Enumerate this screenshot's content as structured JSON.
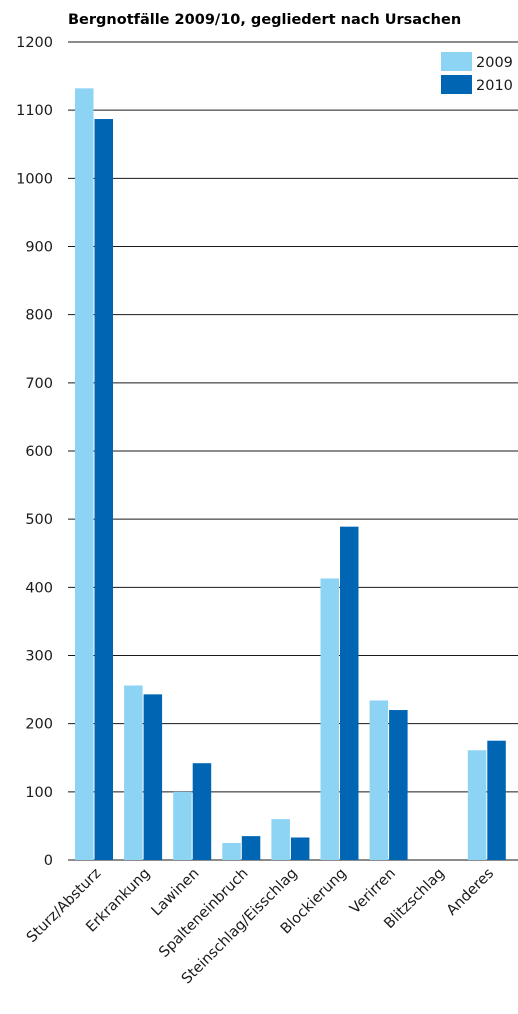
{
  "chart_data": {
    "type": "bar",
    "title": "Bergnotfälle 2009/10, gegliedert nach Ursachen",
    "xlabel": "",
    "ylabel": "",
    "ylim": [
      0,
      1200
    ],
    "yticks": [
      0,
      100,
      200,
      300,
      400,
      500,
      600,
      700,
      800,
      900,
      1000,
      1100,
      1200
    ],
    "grid": true,
    "legend_position": "top-right",
    "categories": [
      "Sturz/Absturz",
      "Erkrankung",
      "Lawinen",
      "Spalteneinbruch",
      "Steinschlag/Eisschlag",
      "Blockierung",
      "Verirren",
      "Blitzschlag",
      "Anderes"
    ],
    "series": [
      {
        "name": "2009",
        "color": "#8cd3f4",
        "values": [
          1132,
          256,
          100,
          25,
          60,
          413,
          234,
          0,
          161
        ]
      },
      {
        "name": "2010",
        "color": "#0065b3",
        "values": [
          1087,
          243,
          142,
          35,
          33,
          489,
          220,
          0,
          175
        ]
      }
    ]
  }
}
